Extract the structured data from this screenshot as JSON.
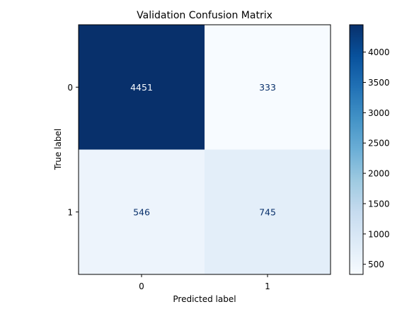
{
  "chart_data": {
    "type": "heatmap",
    "title": "Validation Confusion Matrix",
    "xlabel": "Predicted label",
    "ylabel": "True label",
    "x_categories": [
      "0",
      "1"
    ],
    "y_categories": [
      "0",
      "1"
    ],
    "values": [
      [
        4451,
        333
      ],
      [
        546,
        745
      ]
    ],
    "colormap": "Blues",
    "colorbar": {
      "min": 333,
      "max": 4451,
      "ticks": [
        500,
        1000,
        1500,
        2000,
        2500,
        3000,
        3500,
        4000
      ]
    }
  }
}
